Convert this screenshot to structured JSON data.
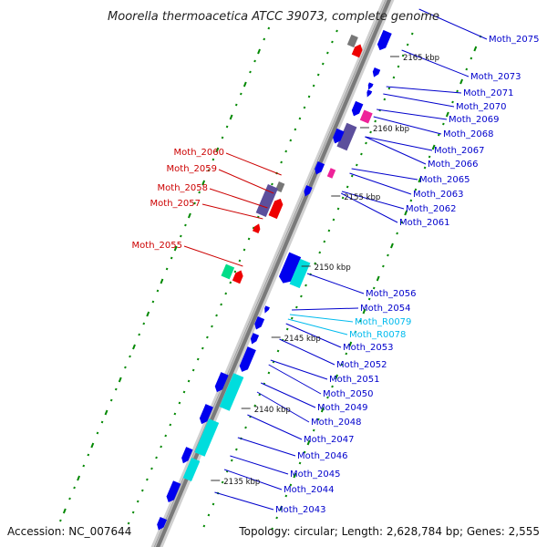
{
  "title": "Moorella thermoacetica ATCC 39073, complete genome",
  "footer": {
    "accession": "Accession: NC_007644",
    "summary": "Topology: circular; Length: 2,628,784 bp; Genes: 2,555"
  },
  "colors": {
    "backbone": "#8a8a8a",
    "cds_forward": "#0000ee",
    "cds_reverse": "#ee0000",
    "rna": "#00dddd",
    "gene_bar": "#5c4f9c",
    "gc_marks": "#008800",
    "label_forward": "#0000cc",
    "label_reverse": "#cc0000",
    "label_rna": "#00bbee"
  },
  "kbp_ticks": [
    "2165 kbp",
    "2160 kbp",
    "2155 kbp",
    "2150 kbp",
    "2145 kbp",
    "2140 kbp",
    "2135 kbp"
  ],
  "labels_right": [
    {
      "text": "Moth_2075",
      "kind": "forward"
    },
    {
      "text": "Moth_2073",
      "kind": "forward"
    },
    {
      "text": "Moth_2071",
      "kind": "forward"
    },
    {
      "text": "Moth_2070",
      "kind": "forward"
    },
    {
      "text": "Moth_2069",
      "kind": "forward"
    },
    {
      "text": "Moth_2068",
      "kind": "forward"
    },
    {
      "text": "Moth_2067",
      "kind": "forward"
    },
    {
      "text": "Moth_2066",
      "kind": "forward"
    },
    {
      "text": "Moth_2065",
      "kind": "forward"
    },
    {
      "text": "Moth_2063",
      "kind": "forward"
    },
    {
      "text": "Moth_2062",
      "kind": "forward"
    },
    {
      "text": "Moth_2061",
      "kind": "forward"
    },
    {
      "text": "Moth_2056",
      "kind": "forward"
    },
    {
      "text": "Moth_2054",
      "kind": "forward"
    },
    {
      "text": "Moth_R0079",
      "kind": "rna"
    },
    {
      "text": "Moth_R0078",
      "kind": "rna"
    },
    {
      "text": "Moth_2053",
      "kind": "forward"
    },
    {
      "text": "Moth_2052",
      "kind": "forward"
    },
    {
      "text": "Moth_2051",
      "kind": "forward"
    },
    {
      "text": "Moth_2050",
      "kind": "forward"
    },
    {
      "text": "Moth_2049",
      "kind": "forward"
    },
    {
      "text": "Moth_2048",
      "kind": "forward"
    },
    {
      "text": "Moth_2047",
      "kind": "forward"
    },
    {
      "text": "Moth_2046",
      "kind": "forward"
    },
    {
      "text": "Moth_2045",
      "kind": "forward"
    },
    {
      "text": "Moth_2044",
      "kind": "forward"
    },
    {
      "text": "Moth_2043",
      "kind": "forward"
    }
  ],
  "labels_left": [
    {
      "text": "Moth_2060",
      "kind": "reverse"
    },
    {
      "text": "Moth_2059",
      "kind": "reverse"
    },
    {
      "text": "Moth_2058",
      "kind": "reverse"
    },
    {
      "text": "Moth_2057",
      "kind": "reverse"
    },
    {
      "text": "Moth_2055",
      "kind": "reverse"
    }
  ]
}
